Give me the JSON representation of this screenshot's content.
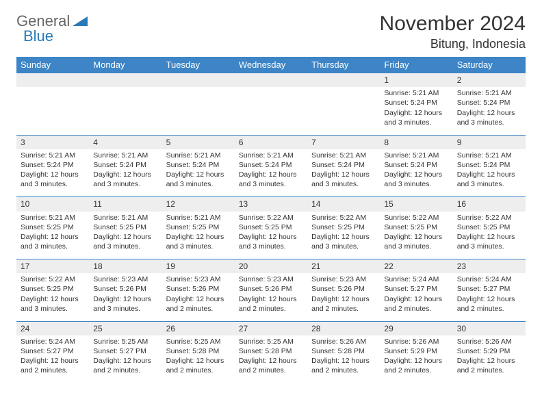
{
  "logo": {
    "text1": "General",
    "text2": "Blue"
  },
  "title": "November 2024",
  "location": "Bitung, Indonesia",
  "colors": {
    "header_bg": "#3d85c6",
    "header_text": "#ffffff",
    "daynum_bg": "#eeeeee",
    "border": "#3d85c6",
    "text": "#333333",
    "logo_gray": "#666666",
    "logo_blue": "#2a7ab8"
  },
  "weekdays": [
    "Sunday",
    "Monday",
    "Tuesday",
    "Wednesday",
    "Thursday",
    "Friday",
    "Saturday"
  ],
  "weeks": [
    [
      null,
      null,
      null,
      null,
      null,
      {
        "n": "1",
        "sr": "Sunrise: 5:21 AM",
        "ss": "Sunset: 5:24 PM",
        "d1": "Daylight: 12 hours",
        "d2": "and 3 minutes."
      },
      {
        "n": "2",
        "sr": "Sunrise: 5:21 AM",
        "ss": "Sunset: 5:24 PM",
        "d1": "Daylight: 12 hours",
        "d2": "and 3 minutes."
      }
    ],
    [
      {
        "n": "3",
        "sr": "Sunrise: 5:21 AM",
        "ss": "Sunset: 5:24 PM",
        "d1": "Daylight: 12 hours",
        "d2": "and 3 minutes."
      },
      {
        "n": "4",
        "sr": "Sunrise: 5:21 AM",
        "ss": "Sunset: 5:24 PM",
        "d1": "Daylight: 12 hours",
        "d2": "and 3 minutes."
      },
      {
        "n": "5",
        "sr": "Sunrise: 5:21 AM",
        "ss": "Sunset: 5:24 PM",
        "d1": "Daylight: 12 hours",
        "d2": "and 3 minutes."
      },
      {
        "n": "6",
        "sr": "Sunrise: 5:21 AM",
        "ss": "Sunset: 5:24 PM",
        "d1": "Daylight: 12 hours",
        "d2": "and 3 minutes."
      },
      {
        "n": "7",
        "sr": "Sunrise: 5:21 AM",
        "ss": "Sunset: 5:24 PM",
        "d1": "Daylight: 12 hours",
        "d2": "and 3 minutes."
      },
      {
        "n": "8",
        "sr": "Sunrise: 5:21 AM",
        "ss": "Sunset: 5:24 PM",
        "d1": "Daylight: 12 hours",
        "d2": "and 3 minutes."
      },
      {
        "n": "9",
        "sr": "Sunrise: 5:21 AM",
        "ss": "Sunset: 5:24 PM",
        "d1": "Daylight: 12 hours",
        "d2": "and 3 minutes."
      }
    ],
    [
      {
        "n": "10",
        "sr": "Sunrise: 5:21 AM",
        "ss": "Sunset: 5:25 PM",
        "d1": "Daylight: 12 hours",
        "d2": "and 3 minutes."
      },
      {
        "n": "11",
        "sr": "Sunrise: 5:21 AM",
        "ss": "Sunset: 5:25 PM",
        "d1": "Daylight: 12 hours",
        "d2": "and 3 minutes."
      },
      {
        "n": "12",
        "sr": "Sunrise: 5:21 AM",
        "ss": "Sunset: 5:25 PM",
        "d1": "Daylight: 12 hours",
        "d2": "and 3 minutes."
      },
      {
        "n": "13",
        "sr": "Sunrise: 5:22 AM",
        "ss": "Sunset: 5:25 PM",
        "d1": "Daylight: 12 hours",
        "d2": "and 3 minutes."
      },
      {
        "n": "14",
        "sr": "Sunrise: 5:22 AM",
        "ss": "Sunset: 5:25 PM",
        "d1": "Daylight: 12 hours",
        "d2": "and 3 minutes."
      },
      {
        "n": "15",
        "sr": "Sunrise: 5:22 AM",
        "ss": "Sunset: 5:25 PM",
        "d1": "Daylight: 12 hours",
        "d2": "and 3 minutes."
      },
      {
        "n": "16",
        "sr": "Sunrise: 5:22 AM",
        "ss": "Sunset: 5:25 PM",
        "d1": "Daylight: 12 hours",
        "d2": "and 3 minutes."
      }
    ],
    [
      {
        "n": "17",
        "sr": "Sunrise: 5:22 AM",
        "ss": "Sunset: 5:25 PM",
        "d1": "Daylight: 12 hours",
        "d2": "and 3 minutes."
      },
      {
        "n": "18",
        "sr": "Sunrise: 5:23 AM",
        "ss": "Sunset: 5:26 PM",
        "d1": "Daylight: 12 hours",
        "d2": "and 3 minutes."
      },
      {
        "n": "19",
        "sr": "Sunrise: 5:23 AM",
        "ss": "Sunset: 5:26 PM",
        "d1": "Daylight: 12 hours",
        "d2": "and 2 minutes."
      },
      {
        "n": "20",
        "sr": "Sunrise: 5:23 AM",
        "ss": "Sunset: 5:26 PM",
        "d1": "Daylight: 12 hours",
        "d2": "and 2 minutes."
      },
      {
        "n": "21",
        "sr": "Sunrise: 5:23 AM",
        "ss": "Sunset: 5:26 PM",
        "d1": "Daylight: 12 hours",
        "d2": "and 2 minutes."
      },
      {
        "n": "22",
        "sr": "Sunrise: 5:24 AM",
        "ss": "Sunset: 5:27 PM",
        "d1": "Daylight: 12 hours",
        "d2": "and 2 minutes."
      },
      {
        "n": "23",
        "sr": "Sunrise: 5:24 AM",
        "ss": "Sunset: 5:27 PM",
        "d1": "Daylight: 12 hours",
        "d2": "and 2 minutes."
      }
    ],
    [
      {
        "n": "24",
        "sr": "Sunrise: 5:24 AM",
        "ss": "Sunset: 5:27 PM",
        "d1": "Daylight: 12 hours",
        "d2": "and 2 minutes."
      },
      {
        "n": "25",
        "sr": "Sunrise: 5:25 AM",
        "ss": "Sunset: 5:27 PM",
        "d1": "Daylight: 12 hours",
        "d2": "and 2 minutes."
      },
      {
        "n": "26",
        "sr": "Sunrise: 5:25 AM",
        "ss": "Sunset: 5:28 PM",
        "d1": "Daylight: 12 hours",
        "d2": "and 2 minutes."
      },
      {
        "n": "27",
        "sr": "Sunrise: 5:25 AM",
        "ss": "Sunset: 5:28 PM",
        "d1": "Daylight: 12 hours",
        "d2": "and 2 minutes."
      },
      {
        "n": "28",
        "sr": "Sunrise: 5:26 AM",
        "ss": "Sunset: 5:28 PM",
        "d1": "Daylight: 12 hours",
        "d2": "and 2 minutes."
      },
      {
        "n": "29",
        "sr": "Sunrise: 5:26 AM",
        "ss": "Sunset: 5:29 PM",
        "d1": "Daylight: 12 hours",
        "d2": "and 2 minutes."
      },
      {
        "n": "30",
        "sr": "Sunrise: 5:26 AM",
        "ss": "Sunset: 5:29 PM",
        "d1": "Daylight: 12 hours",
        "d2": "and 2 minutes."
      }
    ]
  ]
}
